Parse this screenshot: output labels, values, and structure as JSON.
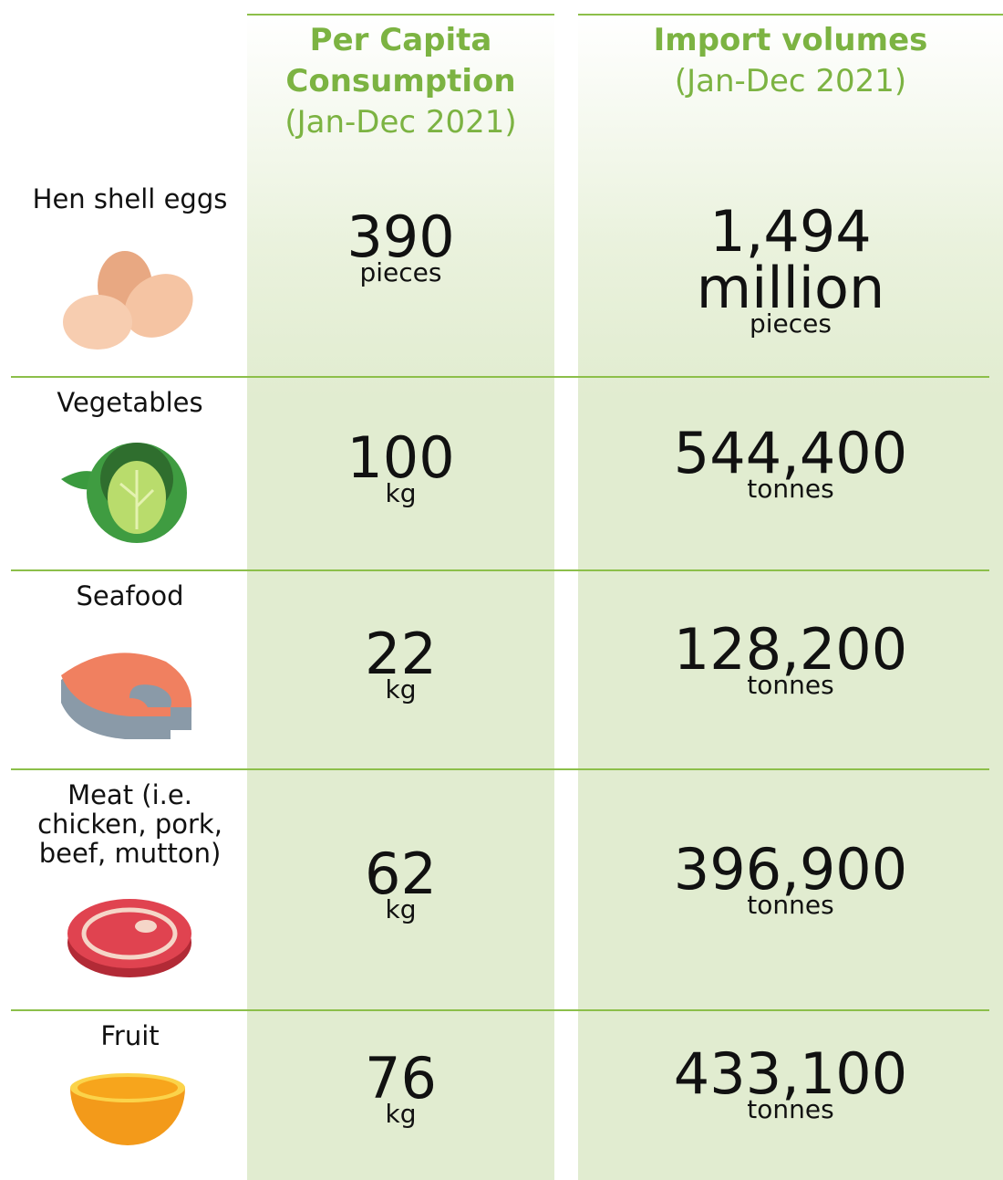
{
  "header": {
    "columns": [
      {
        "title": "Per Capita Consumption",
        "period": "(Jan-Dec 2021)"
      },
      {
        "title": "Import volumes",
        "period": "(Jan-Dec 2021)"
      }
    ]
  },
  "table": {
    "rows": [
      {
        "label": "Hen shell eggs",
        "per_capita": {
          "value": "390",
          "unit": "pieces"
        },
        "imports": {
          "value": "1,494",
          "magnitude": "million",
          "unit": "pieces"
        }
      },
      {
        "label": "Vegetables",
        "per_capita": {
          "value": "100",
          "unit": "kg"
        },
        "imports": {
          "value": "544,400",
          "unit": "tonnes"
        }
      },
      {
        "label": "Seafood",
        "per_capita": {
          "value": "22",
          "unit": "kg"
        },
        "imports": {
          "value": "128,200",
          "unit": "tonnes"
        }
      },
      {
        "label": "Meat (i.e. chicken, pork, beef, mutton)",
        "per_capita": {
          "value": "62",
          "unit": "kg"
        },
        "imports": {
          "value": "396,900",
          "unit": "tonnes"
        }
      },
      {
        "label": "Fruit",
        "per_capita": {
          "value": "76",
          "unit": "kg"
        },
        "imports": {
          "value": "433,100",
          "unit": "tonnes"
        }
      }
    ]
  }
}
